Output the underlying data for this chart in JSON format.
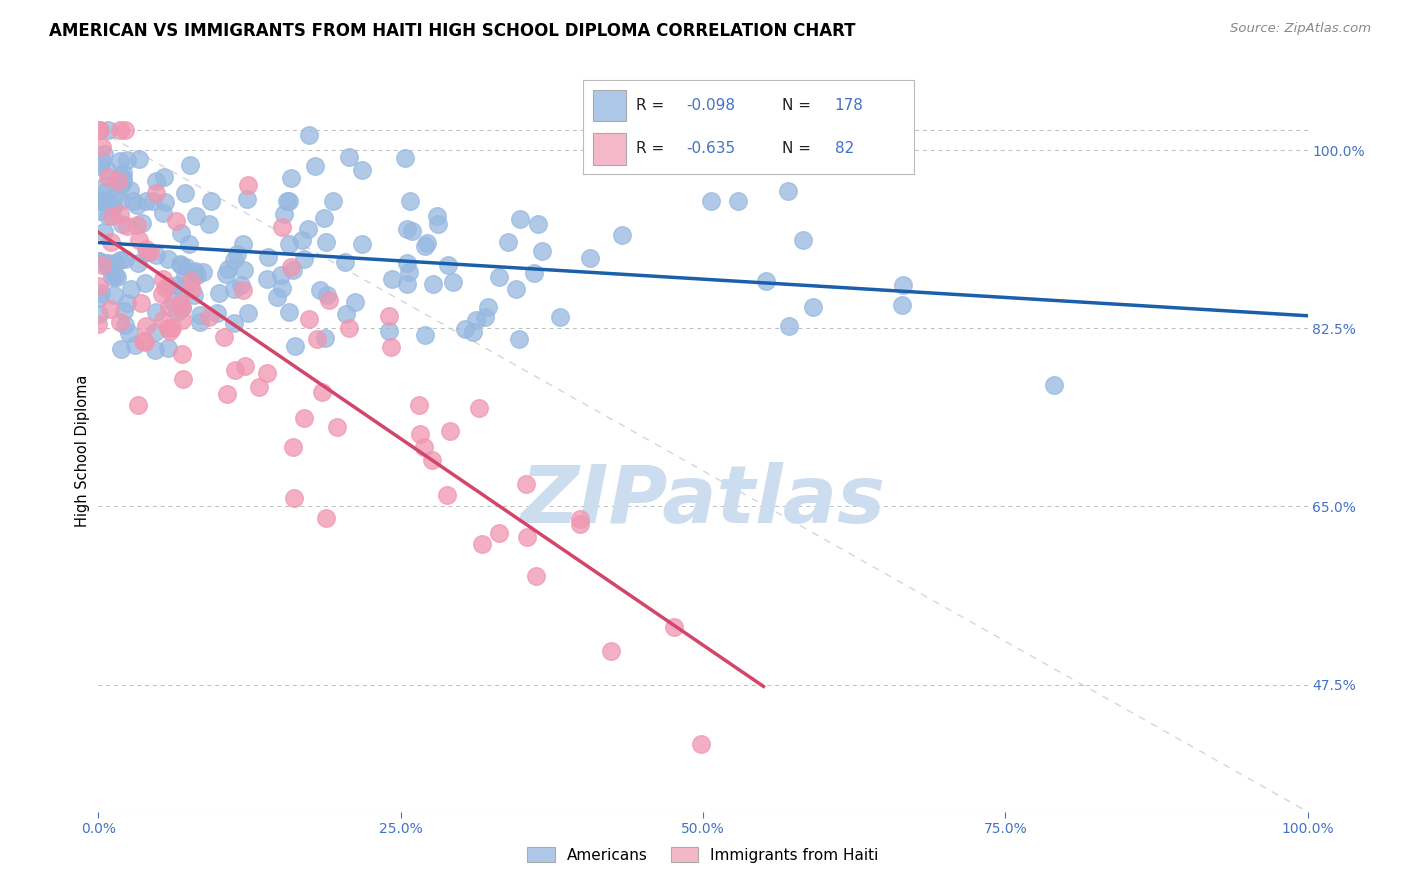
{
  "title": "AMERICAN VS IMMIGRANTS FROM HAITI HIGH SCHOOL DIPLOMA CORRELATION CHART",
  "source": "Source: ZipAtlas.com",
  "ylabel": "High School Diploma",
  "legend_entries": [
    "Americans",
    "Immigrants from Haiti"
  ],
  "legend_r_n": [
    {
      "R": -0.098,
      "N": 178,
      "color": "#adc8e8"
    },
    {
      "R": -0.635,
      "N": 82,
      "color": "#f5b8c8"
    }
  ],
  "blue_scatter_color": "#96b8e0",
  "pink_scatter_color": "#f096b0",
  "blue_line_color": "#1a5fa8",
  "pink_line_color": "#d4456a",
  "diagonal_color": "#cccccc",
  "watermark": "ZIPatlas",
  "watermark_color": "#ccddf0",
  "background_color": "#ffffff",
  "grid_color": "#bbbbbb",
  "axis_label_color": "#4472c4",
  "title_fontsize": 12,
  "xmin": 0.0,
  "xmax": 1.0,
  "ymin": 0.35,
  "ymax": 1.06,
  "right_yticks": [
    1.0,
    0.825,
    0.65,
    0.475
  ],
  "right_yticklabels": [
    "100.0%",
    "82.5%",
    "65.0%",
    "47.5%"
  ],
  "xtick_labels": [
    "0.0%",
    "25.0%",
    "50.0%",
    "75.0%",
    "100.0%"
  ],
  "xtick_vals": [
    0.0,
    0.25,
    0.5,
    0.75,
    1.0
  ]
}
